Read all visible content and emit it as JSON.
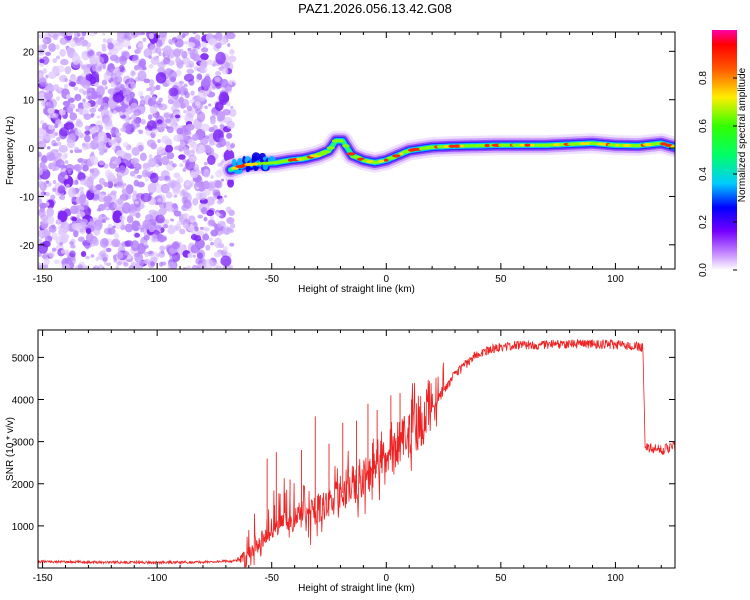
{
  "title": "PAZ1.2026.056.13.42.G08",
  "chart_data": [
    {
      "type": "heatmap",
      "title": "PAZ1.2026.056.13.42.G08",
      "xlabel": "Height of straight line (km)",
      "ylabel": "Frequency (Hz)",
      "xlim": [
        -152,
        126
      ],
      "ylim": [
        -25,
        24
      ],
      "xticks": [
        -150,
        -100,
        -50,
        0,
        50,
        100
      ],
      "yticks": [
        -20,
        -10,
        0,
        10,
        20
      ],
      "noise_region_x": [
        -152,
        -67
      ],
      "ridge": {
        "x": [
          -68,
          -62,
          -55,
          -48,
          -42,
          -36,
          -30,
          -25,
          -22,
          -19,
          -15,
          -10,
          -5,
          0,
          5,
          10,
          20,
          30,
          50,
          70,
          90,
          100,
          110,
          120,
          126
        ],
        "frequency_hz": [
          -4.5,
          -3.5,
          -3.2,
          -3.0,
          -2.5,
          -2.2,
          -1.5,
          -0.5,
          1.5,
          1.5,
          -1.5,
          -2.5,
          -3.0,
          -2.5,
          -1.5,
          -0.5,
          0.2,
          0.4,
          0.6,
          0.6,
          1.0,
          0.6,
          0.5,
          1.0,
          0.2
        ]
      },
      "colorbar": {
        "label": "Normalized spectral amplitude",
        "ticks": [
          "0.0",
          "0.2",
          "0.4",
          "0.6",
          "0.8"
        ],
        "range": [
          0,
          1
        ]
      }
    },
    {
      "type": "line",
      "xlabel": "Height of straight line (km)",
      "ylabel": "SNR (10 * v/v)",
      "xlim": [
        -152,
        126
      ],
      "ylim": [
        0,
        5650
      ],
      "xticks": [
        -150,
        -100,
        -50,
        0,
        50,
        100
      ],
      "yticks": [
        1000,
        2000,
        3000,
        4000,
        5000
      ],
      "color": "#ee2222",
      "trend": {
        "x": [
          -152,
          -100,
          -80,
          -65,
          -60,
          -55,
          -50,
          -45,
          -40,
          -35,
          -30,
          -25,
          -20,
          -15,
          -10,
          -5,
          0,
          5,
          10,
          15,
          20,
          25,
          30,
          40,
          50,
          60,
          70,
          80,
          90,
          100,
          110,
          112,
          113,
          120,
          126
        ],
        "y": [
          150,
          130,
          140,
          170,
          300,
          600,
          900,
          1050,
          1150,
          1300,
          1400,
          1550,
          1750,
          1900,
          2100,
          2400,
          2700,
          2950,
          3150,
          3450,
          3800,
          4200,
          4600,
          5100,
          5250,
          5300,
          5300,
          5320,
          5320,
          5300,
          5250,
          5250,
          2850,
          2800,
          2900
        ]
      },
      "spikes": {
        "x": [
          -52,
          -48,
          -42,
          -37,
          -31,
          -25,
          -19,
          -13,
          -8,
          -4,
          2,
          6,
          11
        ],
        "y": [
          2600,
          2750,
          2100,
          2800,
          3600,
          2950,
          3450,
          3500,
          3900,
          3750,
          4100,
          4150,
          4000
        ]
      }
    }
  ]
}
